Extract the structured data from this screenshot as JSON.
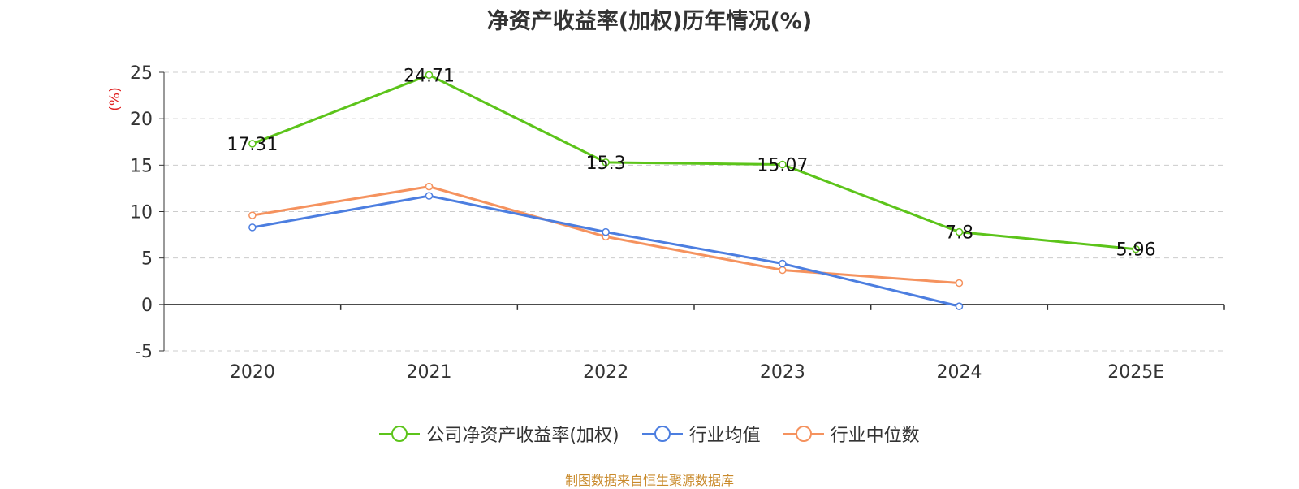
{
  "chart_data": {
    "type": "line",
    "title": "净资产收益率(加权)历年情况(%)",
    "ylabel": "(%)",
    "categories": [
      "2020",
      "2021",
      "2022",
      "2023",
      "2024",
      "2025E"
    ],
    "ylim": [
      -5,
      25
    ],
    "yticks": [
      -5,
      0,
      5,
      10,
      15,
      20,
      25
    ],
    "grid": true,
    "legend_position": "bottom",
    "series": [
      {
        "name": "公司净资产收益率(加权)",
        "color": "#5cc41a",
        "values": [
          17.31,
          24.71,
          15.3,
          15.07,
          7.8,
          5.96
        ],
        "labels": [
          "17.31",
          "24.71",
          "15.3",
          "15.07",
          "7.8",
          "5.96"
        ]
      },
      {
        "name": "行业均值",
        "color": "#4c7ee0",
        "values": [
          8.3,
          11.7,
          7.8,
          4.4,
          -0.2,
          null
        ]
      },
      {
        "name": "行业中位数",
        "color": "#f5925e",
        "values": [
          9.6,
          12.7,
          7.3,
          3.7,
          2.3,
          null
        ]
      }
    ]
  },
  "footer": {
    "source": "制图数据来自恒生聚源数据库"
  }
}
